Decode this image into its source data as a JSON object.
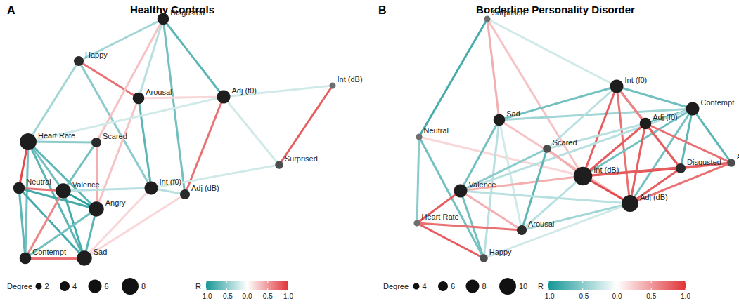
{
  "chart_data": [
    {
      "type": "network",
      "panel": "A",
      "title": "Healthy Controls",
      "nodes": [
        "Disgusted",
        "Happy",
        "Arousal",
        "Adj (f0)",
        "Int (dB)",
        "Surprised",
        "Heart Rate",
        "Scared",
        "Neutral",
        "Valence",
        "Angry",
        "Int (f0)",
        "Adj (dB)",
        "Contempt",
        "Sad"
      ],
      "edges": [
        {
          "source": "Happy",
          "target": "Disgusted",
          "r": -0.4
        },
        {
          "source": "Happy",
          "target": "Arousal",
          "r": 0.7
        },
        {
          "source": "Happy",
          "target": "Heart Rate",
          "r": -0.4
        },
        {
          "source": "Happy",
          "target": "Int (f0)",
          "r": -0.5
        },
        {
          "source": "Disgusted",
          "target": "Arousal",
          "r": -0.3
        },
        {
          "source": "Disgusted",
          "target": "Adj (f0)",
          "r": -0.7
        },
        {
          "source": "Disgusted",
          "target": "Scared",
          "r": 0.3
        },
        {
          "source": "Disgusted",
          "target": "Adj (dB)",
          "r": -0.6
        },
        {
          "source": "Arousal",
          "target": "Adj (f0)",
          "r": 0.2
        },
        {
          "source": "Arousal",
          "target": "Int (f0)",
          "r": -0.7
        },
        {
          "source": "Arousal",
          "target": "Angry",
          "r": 0.3
        },
        {
          "source": "Adj (f0)",
          "target": "Int (dB)",
          "r": -0.2
        },
        {
          "source": "Adj (f0)",
          "target": "Adj (dB)",
          "r": 0.7
        },
        {
          "source": "Adj (f0)",
          "target": "Surprised",
          "r": -0.2
        },
        {
          "source": "Adj (f0)",
          "target": "Heart Rate",
          "r": -0.2
        },
        {
          "source": "Int (dB)",
          "target": "Surprised",
          "r": 0.8
        },
        {
          "source": "Surprised",
          "target": "Int (f0)",
          "r": -0.2
        },
        {
          "source": "Heart Rate",
          "target": "Scared",
          "r": -0.5
        },
        {
          "source": "Heart Rate",
          "target": "Neutral",
          "r": 0.9
        },
        {
          "source": "Heart Rate",
          "target": "Valence",
          "r": -0.6
        },
        {
          "source": "Heart Rate",
          "target": "Angry",
          "r": -0.7
        },
        {
          "source": "Heart Rate",
          "target": "Contempt",
          "r": -0.6
        },
        {
          "source": "Heart Rate",
          "target": "Sad",
          "r": -0.7
        },
        {
          "source": "Scared",
          "target": "Valence",
          "r": -0.6
        },
        {
          "source": "Scared",
          "target": "Angry",
          "r": 0.4
        },
        {
          "source": "Neutral",
          "target": "Valence",
          "r": 0.7
        },
        {
          "source": "Neutral",
          "target": "Angry",
          "r": -0.8
        },
        {
          "source": "Neutral",
          "target": "Contempt",
          "r": -0.7
        },
        {
          "source": "Neutral",
          "target": "Sad",
          "r": -0.8
        },
        {
          "source": "Valence",
          "target": "Angry",
          "r": -0.9
        },
        {
          "source": "Valence",
          "target": "Contempt",
          "r": 0.6
        },
        {
          "source": "Valence",
          "target": "Sad",
          "r": -0.8
        },
        {
          "source": "Valence",
          "target": "Int (f0)",
          "r": -0.3
        },
        {
          "source": "Angry",
          "target": "Sad",
          "r": -0.7
        },
        {
          "source": "Angry",
          "target": "Contempt",
          "r": -0.6
        },
        {
          "source": "Contempt",
          "target": "Sad",
          "r": 0.7
        },
        {
          "source": "Int (f0)",
          "target": "Adj (dB)",
          "r": -0.3
        },
        {
          "source": "Sad",
          "target": "Adj (dB)",
          "r": 0.2
        },
        {
          "source": "Sad",
          "target": "Int (f0)",
          "r": 0.2
        }
      ],
      "degree_legend": {
        "title": "Degree",
        "values": [
          2,
          4,
          6,
          8
        ]
      },
      "color_scale": {
        "title": "R",
        "range": [
          -1,
          1
        ],
        "ticks": [
          {
            "value": -1,
            "label": "-1.0"
          },
          {
            "value": -0.5,
            "label": "-0.5"
          },
          {
            "value": 0,
            "label": "0.0"
          },
          {
            "value": 0.5,
            "label": "0.5"
          },
          {
            "value": 1,
            "label": "1.0"
          }
        ]
      }
    },
    {
      "type": "network",
      "panel": "B",
      "title": "Borderline Personality Disorder",
      "nodes": [
        "Surprised",
        "Neutral",
        "Sad",
        "Int (f0)",
        "Contempt",
        "Adj (f0)",
        "Scared",
        "Int (dB)",
        "Disgusted",
        "Angry",
        "Adj (dB)",
        "Valence",
        "Heart Rate",
        "Arousal",
        "Happy"
      ],
      "edges": [
        {
          "source": "Surprised",
          "target": "Neutral",
          "r": -0.8
        },
        {
          "source": "Surprised",
          "target": "Sad",
          "r": 0.4
        },
        {
          "source": "Surprised",
          "target": "Int (f0)",
          "r": -0.2
        },
        {
          "source": "Surprised",
          "target": "Int (dB)",
          "r": 0.3
        },
        {
          "source": "Neutral",
          "target": "Heart Rate",
          "r": -0.5
        },
        {
          "source": "Neutral",
          "target": "Happy",
          "r": -0.6
        },
        {
          "source": "Neutral",
          "target": "Int (dB)",
          "r": 0.2
        },
        {
          "source": "Sad",
          "target": "Int (f0)",
          "r": -0.6
        },
        {
          "source": "Sad",
          "target": "Contempt",
          "r": -0.4
        },
        {
          "source": "Sad",
          "target": "Valence",
          "r": -0.6
        },
        {
          "source": "Sad",
          "target": "Arousal",
          "r": -0.2
        },
        {
          "source": "Sad",
          "target": "Adj (dB)",
          "r": 0.3
        },
        {
          "source": "Sad",
          "target": "Happy",
          "r": -0.3
        },
        {
          "source": "Int (f0)",
          "target": "Contempt",
          "r": -0.6
        },
        {
          "source": "Int (f0)",
          "target": "Adj (f0)",
          "r": 0.8
        },
        {
          "source": "Int (f0)",
          "target": "Int (dB)",
          "r": 0.8
        },
        {
          "source": "Int (f0)",
          "target": "Adj (dB)",
          "r": 0.7
        },
        {
          "source": "Int (f0)",
          "target": "Scared",
          "r": -0.3
        },
        {
          "source": "Int (f0)",
          "target": "Disgusted",
          "r": 0.6
        },
        {
          "source": "Contempt",
          "target": "Adj (f0)",
          "r": -0.7
        },
        {
          "source": "Contempt",
          "target": "Disgusted",
          "r": -0.7
        },
        {
          "source": "Contempt",
          "target": "Angry",
          "r": -0.7
        },
        {
          "source": "Contempt",
          "target": "Int (dB)",
          "r": -0.6
        },
        {
          "source": "Contempt",
          "target": "Adj (dB)",
          "r": -0.6
        },
        {
          "source": "Contempt",
          "target": "Valence",
          "r": -0.3
        },
        {
          "source": "Adj (f0)",
          "target": "Disgusted",
          "r": 0.8
        },
        {
          "source": "Adj (f0)",
          "target": "Angry",
          "r": 0.7
        },
        {
          "source": "Adj (f0)",
          "target": "Int (dB)",
          "r": 0.8
        },
        {
          "source": "Adj (f0)",
          "target": "Adj (dB)",
          "r": 0.8
        },
        {
          "source": "Adj (f0)",
          "target": "Scared",
          "r": -0.3
        },
        {
          "source": "Disgusted",
          "target": "Angry",
          "r": 0.7
        },
        {
          "source": "Disgusted",
          "target": "Int (dB)",
          "r": 0.9
        },
        {
          "source": "Disgusted",
          "target": "Adj (dB)",
          "r": 0.8
        },
        {
          "source": "Angry",
          "target": "Int (dB)",
          "r": 0.8
        },
        {
          "source": "Angry",
          "target": "Adj (dB)",
          "r": 0.7
        },
        {
          "source": "Int (dB)",
          "target": "Adj (dB)",
          "r": 0.9
        },
        {
          "source": "Int (dB)",
          "target": "Scared",
          "r": 0.4
        },
        {
          "source": "Int (dB)",
          "target": "Valence",
          "r": 0.4
        },
        {
          "source": "Int (dB)",
          "target": "Arousal",
          "r": -0.3
        },
        {
          "source": "Scared",
          "target": "Valence",
          "r": -0.5
        },
        {
          "source": "Scared",
          "target": "Arousal",
          "r": -0.7
        },
        {
          "source": "Valence",
          "target": "Heart Rate",
          "r": 0.8
        },
        {
          "source": "Valence",
          "target": "Happy",
          "r": -0.6
        },
        {
          "source": "Valence",
          "target": "Arousal",
          "r": 0.4
        },
        {
          "source": "Valence",
          "target": "Adj (dB)",
          "r": -0.3
        },
        {
          "source": "Heart Rate",
          "target": "Happy",
          "r": 0.8
        },
        {
          "source": "Heart Rate",
          "target": "Arousal",
          "r": 0.7
        },
        {
          "source": "Arousal",
          "target": "Adj (dB)",
          "r": -0.4
        },
        {
          "source": "Happy",
          "target": "Adj (dB)",
          "r": -0.2
        }
      ],
      "degree_legend": {
        "title": "Degree",
        "values": [
          4,
          6,
          8,
          10
        ]
      },
      "color_scale": {
        "title": "R",
        "range": [
          -1,
          1
        ],
        "ticks": [
          {
            "value": -1,
            "label": "-1.0"
          },
          {
            "value": -0.5,
            "label": "-0.5"
          },
          {
            "value": 0,
            "label": "0.0"
          },
          {
            "value": 0.5,
            "label": "0.5"
          },
          {
            "value": 1,
            "label": "1.0"
          }
        ]
      }
    }
  ]
}
